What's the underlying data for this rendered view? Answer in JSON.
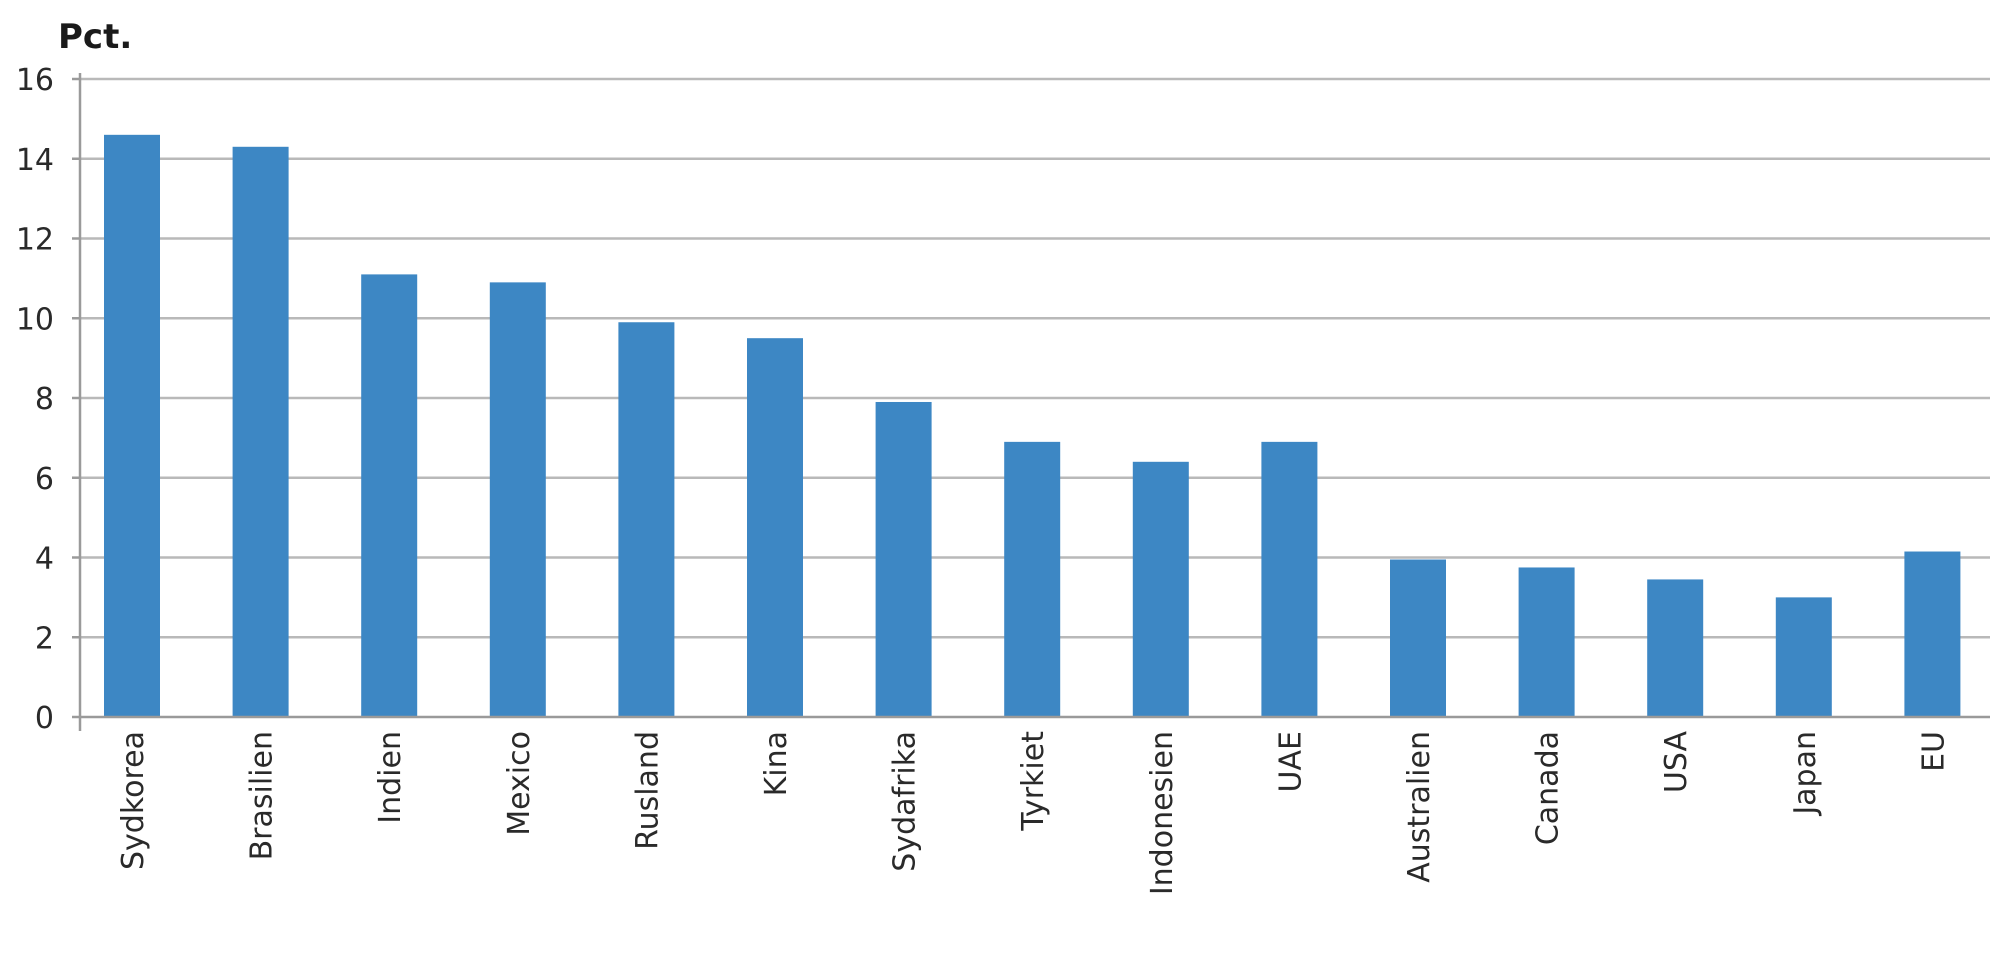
{
  "chart_data": {
    "type": "bar",
    "ylabel": "Pct.",
    "ylim": [
      0,
      16
    ],
    "yticks": [
      0,
      2,
      4,
      6,
      8,
      10,
      12,
      14,
      16
    ],
    "grid": true,
    "categories": [
      "Sydkorea",
      "Brasilien",
      "Indien",
      "Mexico",
      "Rusland",
      "Kina",
      "Sydafrika",
      "Tyrkiet",
      "Indonesien",
      "UAE",
      "Australien",
      "Canada",
      "USA",
      "Japan",
      "EU"
    ],
    "values": [
      14.6,
      14.3,
      11.1,
      10.9,
      9.9,
      9.5,
      7.9,
      6.9,
      6.4,
      6.9,
      3.95,
      3.75,
      3.45,
      3.0,
      4.15
    ],
    "bar_color": "#3d87c4"
  }
}
